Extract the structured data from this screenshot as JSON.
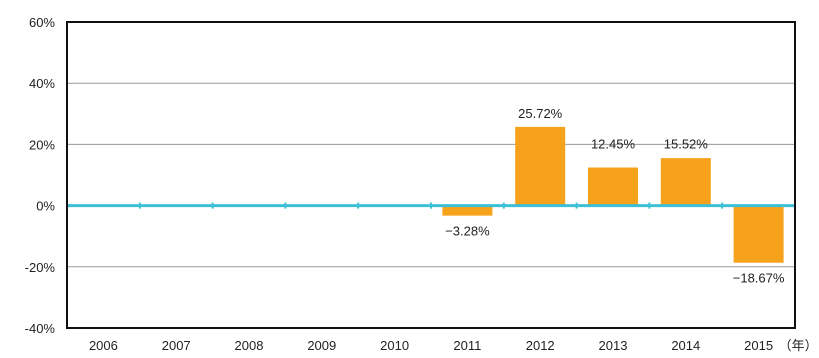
{
  "chart_data": {
    "type": "bar",
    "categories": [
      "2006",
      "2007",
      "2008",
      "2009",
      "2010",
      "2011",
      "2012",
      "2013",
      "2014",
      "2015"
    ],
    "x_unit_suffix": "（年）",
    "values": [
      null,
      null,
      null,
      null,
      null,
      -3.28,
      25.72,
      12.45,
      15.52,
      -18.67
    ],
    "data_labels": [
      "",
      "",
      "",
      "",
      "",
      "−3.28%",
      "25.72%",
      "12.45%",
      "15.52%",
      "−18.67%"
    ],
    "yticks": [
      60,
      40,
      20,
      0,
      -20,
      -40
    ],
    "ytick_labels": [
      "60%",
      "40%",
      "20%",
      "0%",
      "-20%",
      "-40%"
    ],
    "ylim": [
      -40,
      60
    ],
    "grid": true,
    "colors": {
      "bar": "#F7A21B",
      "zero_line": "#3DBFD6",
      "grid": "#999999",
      "frame": "#111111"
    }
  }
}
